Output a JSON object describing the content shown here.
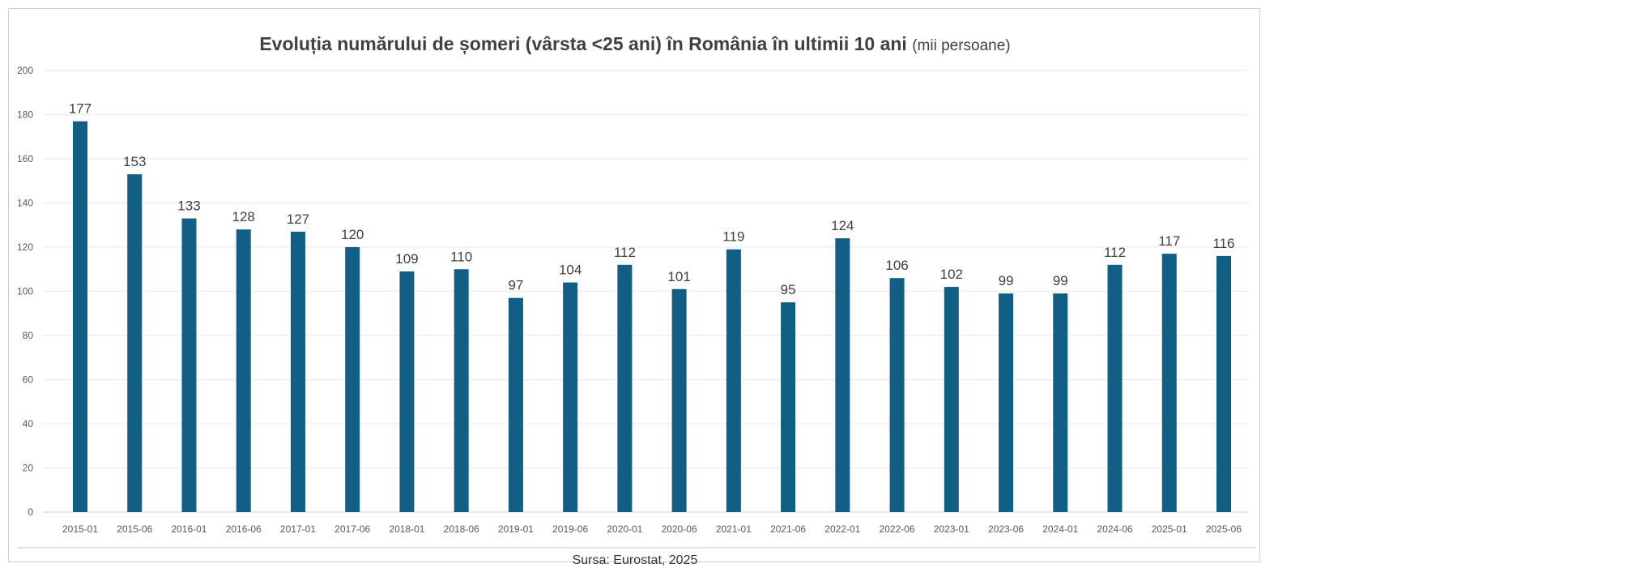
{
  "chart_data": {
    "type": "bar",
    "title": "Evoluția numărului de șomeri (vârsta <25 ani) în România  în ultimii 10 ani",
    "subtitle": "(mii persoane)",
    "categories": [
      "2015-01",
      "2015-06",
      "2016-01",
      "2016-06",
      "2017-01",
      "2017-06",
      "2018-01",
      "2018-06",
      "2019-01",
      "2019-06",
      "2020-01",
      "2020-06",
      "2021-01",
      "2021-06",
      "2022-01",
      "2022-06",
      "2023-01",
      "2023-06",
      "2024-01",
      "2024-06",
      "2025-01",
      "2025-06"
    ],
    "values": [
      177,
      153,
      133,
      128,
      127,
      120,
      109,
      110,
      97,
      104,
      112,
      101,
      119,
      95,
      124,
      106,
      102,
      99,
      99,
      112,
      117,
      116
    ],
    "yticks": [
      0,
      20,
      40,
      60,
      80,
      100,
      120,
      140,
      160,
      180,
      200
    ],
    "ylim": [
      0,
      200
    ],
    "xlabel": "",
    "ylabel": "",
    "grid": true,
    "legend": "none",
    "bar_color": "#125e84",
    "source": "Sursa: Eurostat, 2025"
  }
}
